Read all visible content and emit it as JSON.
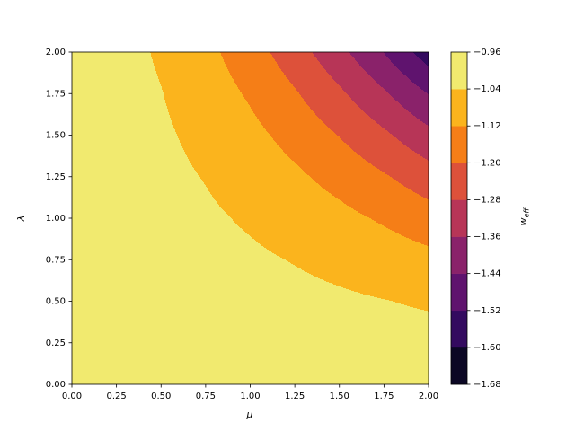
{
  "chart_data": {
    "type": "contourf",
    "xlabel": "μ",
    "ylabel": "λ",
    "colorbar_label": "w",
    "colorbar_label_sub": "eff",
    "x": [
      0,
      0.25,
      0.5,
      0.75,
      1,
      1.25,
      1.5,
      1.75,
      2
    ],
    "y": [
      0,
      0.25,
      0.5,
      0.75,
      1,
      1.25,
      1.5,
      1.75,
      2
    ],
    "z": [
      [
        -1,
        -1,
        -1,
        -1,
        -1,
        -1,
        -1,
        -1,
        -1
      ],
      [
        -1,
        -1.0004,
        -1.0012,
        -1.0025,
        -1.0041,
        -1.0061,
        -1.0085,
        -1.0112,
        -1.0141
      ],
      [
        -1,
        -1.0012,
        -1.0041,
        -1.0085,
        -1.0141,
        -1.021,
        -1.029,
        -1.038,
        -1.0483
      ],
      [
        -1,
        -1.0025,
        -1.0085,
        -1.0174,
        -1.029,
        -1.043,
        -1.0594,
        -1.0781,
        -1.0988
      ],
      [
        -1,
        -1.0041,
        -1.0141,
        -1.029,
        -1.0483,
        -1.0716,
        -1.0988,
        -1.1298,
        -1.1645
      ],
      [
        -1,
        -1.0061,
        -1.021,
        -1.043,
        -1.0716,
        -1.1062,
        -1.1466,
        -1.1926,
        -1.2442
      ],
      [
        -1,
        -1.0085,
        -1.029,
        -1.0594,
        -1.0988,
        -1.1466,
        -1.2027,
        -1.2664,
        -1.337
      ],
      [
        -1,
        -1.0112,
        -1.038,
        -1.0781,
        -1.1298,
        -1.1926,
        -1.2664,
        -1.3496,
        -1.4427
      ],
      [
        -1,
        -1.0141,
        -1.0483,
        -1.0988,
        -1.1645,
        -1.2442,
        -1.337,
        -1.4427,
        -1.5611
      ]
    ],
    "levels": [
      -1.68,
      -1.6,
      -1.52,
      -1.44,
      -1.36,
      -1.28,
      -1.2,
      -1.12,
      -1.04,
      -0.96
    ],
    "colors": [
      "#0b0724",
      "#330a5f",
      "#5f136e",
      "#8a226a",
      "#b73557",
      "#dd513a",
      "#f57e17",
      "#fbb41d",
      "#f1ea6f"
    ],
    "xlim": [
      0,
      2
    ],
    "ylim": [
      0,
      2
    ],
    "xticks": [
      {
        "value": 0,
        "label": "0.00"
      },
      {
        "value": 0.25,
        "label": "0.25"
      },
      {
        "value": 0.5,
        "label": "0.50"
      },
      {
        "value": 0.75,
        "label": "0.75"
      },
      {
        "value": 1,
        "label": "1.00"
      },
      {
        "value": 1.25,
        "label": "1.25"
      },
      {
        "value": 1.5,
        "label": "1.50"
      },
      {
        "value": 1.75,
        "label": "1.75"
      },
      {
        "value": 2,
        "label": "2.00"
      }
    ],
    "yticks": [
      {
        "value": 0,
        "label": "0.00"
      },
      {
        "value": 0.25,
        "label": "0.25"
      },
      {
        "value": 0.5,
        "label": "0.50"
      },
      {
        "value": 0.75,
        "label": "0.75"
      },
      {
        "value": 1,
        "label": "1.00"
      },
      {
        "value": 1.25,
        "label": "1.25"
      },
      {
        "value": 1.5,
        "label": "1.50"
      },
      {
        "value": 1.75,
        "label": "1.75"
      },
      {
        "value": 2,
        "label": "2.00"
      }
    ],
    "colorbar_ticks": [
      {
        "value": -1.68,
        "label": "−1.68"
      },
      {
        "value": -1.6,
        "label": "−1.60"
      },
      {
        "value": -1.52,
        "label": "−1.52"
      },
      {
        "value": -1.44,
        "label": "−1.44"
      },
      {
        "value": -1.36,
        "label": "−1.36"
      },
      {
        "value": -1.28,
        "label": "−1.28"
      },
      {
        "value": -1.2,
        "label": "−1.20"
      },
      {
        "value": -1.12,
        "label": "−1.12"
      },
      {
        "value": -1.04,
        "label": "−1.04"
      },
      {
        "value": -0.96,
        "label": "−0.96"
      }
    ]
  }
}
